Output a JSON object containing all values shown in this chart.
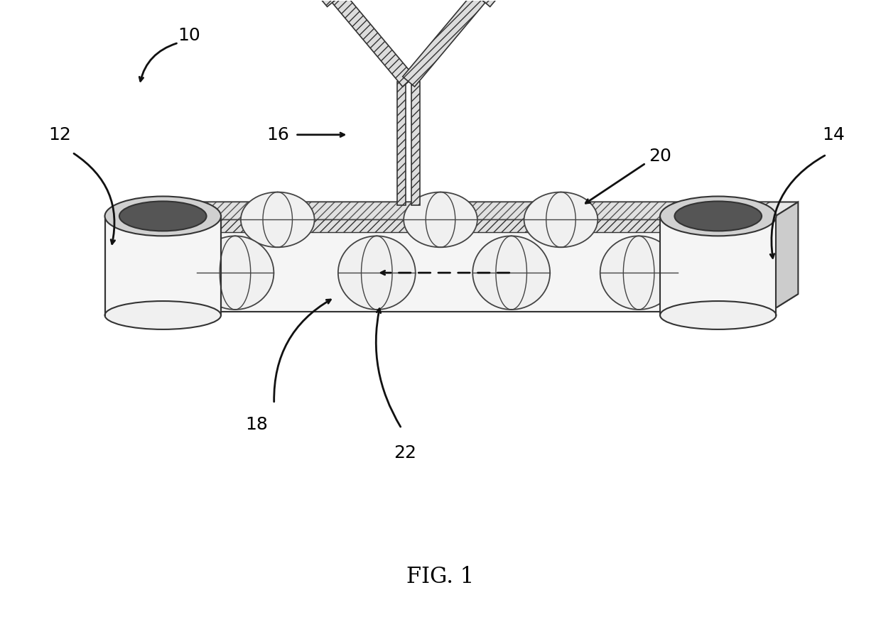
{
  "background_color": "#ffffff",
  "label_10": "10",
  "label_12": "12",
  "label_14": "14",
  "label_16": "16",
  "label_18": "18",
  "label_20": "20",
  "label_22": "22",
  "fig_label": "FIG. 1",
  "chip_face_color": "#f5f5f5",
  "chip_top_color": "#e8e8e8",
  "chip_edge_color": "#333333",
  "chip_side_color": "#cccccc",
  "well_outer_color": "#cccccc",
  "well_inner_color": "#888888",
  "bead_face_color": "#f0f0f0",
  "bead_edge_color": "#444444",
  "hatch_face_color": "#e0e0e0",
  "antibody_face": "#dddddd",
  "antibody_edge": "#333333",
  "label_font_size": 18,
  "fig_label_font_size": 22
}
